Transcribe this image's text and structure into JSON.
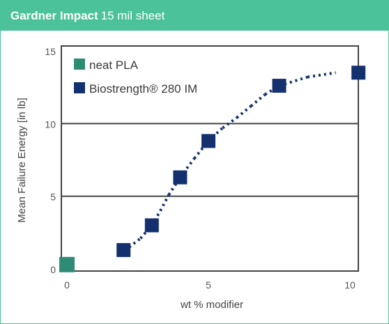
{
  "header": {
    "title_bold": "Gardner Impact",
    "title_light": "15 mil sheet"
  },
  "colors": {
    "header_bg": "#4cc29b",
    "neat_pla": "#2e8b74",
    "biostrength": "#14306e",
    "gridline": "#444444",
    "axis_text": "#555555"
  },
  "chart_data": {
    "type": "scatter",
    "title": "Gardner Impact 15 mil sheet",
    "xlabel": "wt % modifier",
    "ylabel": "Mean Failure Energy [in lb]",
    "xlim": [
      0,
      10.3
    ],
    "ylim": [
      0,
      15
    ],
    "xticks": [
      "0",
      "5",
      "10"
    ],
    "yticks": [
      "0",
      "5",
      "10",
      "15"
    ],
    "grid": "horizontal at 5 and 10",
    "legend_position": "top-left",
    "series": [
      {
        "name": "neat PLA",
        "color": "#2e8b74",
        "marker": "square",
        "points": [
          {
            "x": 0,
            "y": 0.3
          }
        ]
      },
      {
        "name": "Biostrength® 280 IM",
        "color": "#14306e",
        "marker": "square",
        "points": [
          {
            "x": 2.0,
            "y": 1.3
          },
          {
            "x": 3.0,
            "y": 3.0
          },
          {
            "x": 4.0,
            "y": 6.3
          },
          {
            "x": 5.0,
            "y": 8.8
          },
          {
            "x": 7.5,
            "y": 12.6
          },
          {
            "x": 10.3,
            "y": 13.5
          }
        ]
      },
      {
        "name": "trend",
        "color": "#14306e",
        "style": "dashed",
        "points": [
          {
            "x": 2.2,
            "y": 1.5
          },
          {
            "x": 2.6,
            "y": 2.1
          },
          {
            "x": 3.0,
            "y": 3.0
          },
          {
            "x": 3.3,
            "y": 4.0
          },
          {
            "x": 3.6,
            "y": 5.1
          },
          {
            "x": 4.0,
            "y": 6.3
          },
          {
            "x": 4.5,
            "y": 7.6
          },
          {
            "x": 5.0,
            "y": 8.8
          },
          {
            "x": 5.5,
            "y": 9.7
          },
          {
            "x": 6.0,
            "y": 10.4
          },
          {
            "x": 6.5,
            "y": 11.2
          },
          {
            "x": 7.0,
            "y": 12.0
          },
          {
            "x": 7.5,
            "y": 12.6
          },
          {
            "x": 8.5,
            "y": 13.2
          },
          {
            "x": 9.5,
            "y": 13.5
          }
        ]
      }
    ]
  }
}
